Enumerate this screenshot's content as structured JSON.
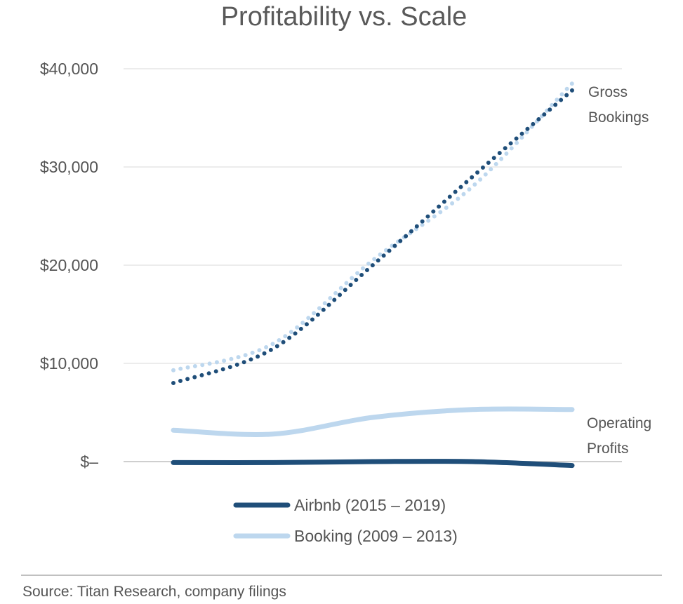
{
  "chart_data": {
    "type": "line",
    "title": "Profitability vs. Scale",
    "y_ticks": [
      "$40,000",
      "$30,000",
      "$20,000",
      "$10,000",
      "$–"
    ],
    "ylim": [
      0,
      40000
    ],
    "grid": true,
    "annotations": {
      "gross_line1": "Gross",
      "gross_line2": "Bookings",
      "op_line1": "Operating",
      "op_line2": "Profits"
    },
    "legend": {
      "placement": "bottom-center",
      "items": [
        "Airbnb (2015 – 2019)",
        "Booking (2009 – 2013)"
      ]
    },
    "source": "Source: Titan Research, company filings",
    "colors": {
      "airbnb": "#1f4e79",
      "booking": "#bdd7ee",
      "grid": "#d9d9d9",
      "axis": "#bfbfbf"
    },
    "x": [
      0,
      0.25,
      0.5,
      0.75,
      1
    ],
    "series": [
      {
        "name": "Airbnb (2015 – 2019)",
        "metric": "Gross Bookings",
        "style": "dotted",
        "color": "#1f4e79",
        "values": [
          8000,
          11500,
          20000,
          29000,
          37800
        ]
      },
      {
        "name": "Booking (2009 – 2013)",
        "metric": "Gross Bookings",
        "style": "dotted",
        "color": "#bdd7ee",
        "values": [
          9300,
          12000,
          20500,
          28000,
          38500
        ]
      },
      {
        "name": "Airbnb (2015 – 2019)",
        "metric": "Operating Profits",
        "style": "solid",
        "color": "#1f4e79",
        "values": [
          -100,
          -100,
          0,
          0,
          -400
        ]
      },
      {
        "name": "Booking (2009 – 2013)",
        "metric": "Operating Profits",
        "style": "solid",
        "color": "#bdd7ee",
        "values": [
          3200,
          2800,
          4500,
          5300,
          5300
        ]
      }
    ]
  }
}
